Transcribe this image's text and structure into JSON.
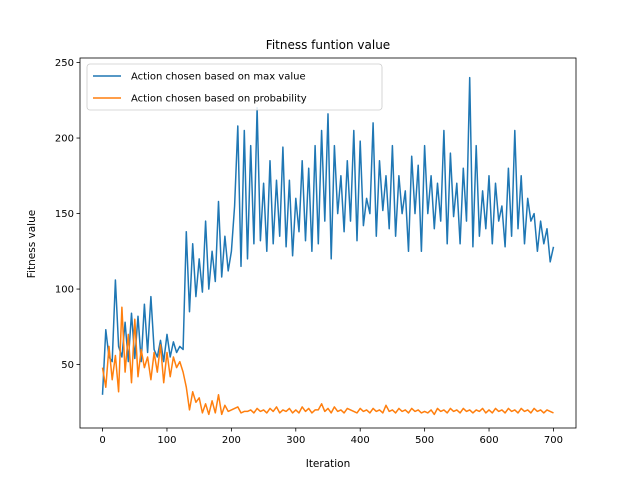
{
  "chart_data": {
    "type": "line",
    "title": "Fitness funtion value",
    "xlabel": "Iteration",
    "ylabel": "Fitness value",
    "xlim": [
      -35,
      735
    ],
    "ylim": [
      8,
      253
    ],
    "xticks": [
      0,
      100,
      200,
      300,
      400,
      500,
      600,
      700
    ],
    "yticks": [
      50,
      100,
      150,
      200,
      250
    ],
    "grid": false,
    "legend_position": "upper-left",
    "series": [
      {
        "name": "Action chosen based on max value",
        "color": "#1f77b4",
        "x": [
          0,
          5,
          10,
          15,
          20,
          25,
          30,
          35,
          40,
          45,
          50,
          55,
          60,
          65,
          70,
          75,
          80,
          85,
          90,
          95,
          100,
          105,
          110,
          115,
          120,
          125,
          130,
          135,
          140,
          145,
          150,
          155,
          160,
          165,
          170,
          175,
          180,
          185,
          190,
          195,
          200,
          205,
          210,
          215,
          220,
          225,
          230,
          235,
          240,
          245,
          250,
          255,
          260,
          265,
          270,
          275,
          280,
          285,
          290,
          295,
          300,
          305,
          310,
          315,
          320,
          325,
          330,
          335,
          340,
          345,
          350,
          355,
          360,
          365,
          370,
          375,
          380,
          385,
          390,
          395,
          400,
          405,
          410,
          415,
          420,
          425,
          430,
          435,
          440,
          445,
          450,
          455,
          460,
          465,
          470,
          475,
          480,
          485,
          490,
          495,
          500,
          505,
          510,
          515,
          520,
          525,
          530,
          535,
          540,
          545,
          550,
          555,
          560,
          565,
          570,
          575,
          580,
          585,
          590,
          595,
          600,
          605,
          610,
          615,
          620,
          625,
          630,
          635,
          640,
          645,
          650,
          655,
          660,
          665,
          670,
          675,
          680,
          685,
          690,
          695,
          700
        ],
        "values": [
          30,
          73,
          55,
          52,
          106,
          62,
          55,
          78,
          52,
          84,
          54,
          82,
          52,
          90,
          58,
          95,
          60,
          55,
          66,
          52,
          70,
          55,
          65,
          58,
          62,
          60,
          138,
          85,
          130,
          95,
          120,
          98,
          145,
          100,
          125,
          105,
          158,
          108,
          135,
          112,
          125,
          155,
          208,
          115,
          205,
          120,
          195,
          130,
          220,
          132,
          170,
          125,
          185,
          130,
          172,
          135,
          194,
          128,
          172,
          122,
          160,
          138,
          185,
          132,
          180,
          125,
          195,
          130,
          205,
          145,
          216,
          120,
          195,
          150,
          175,
          138,
          185,
          145,
          205,
          132,
          198,
          142,
          160,
          150,
          210,
          135,
          185,
          152,
          175,
          140,
          195,
          135,
          175,
          150,
          165,
          125,
          188,
          150,
          182,
          125,
          195,
          150,
          175,
          140,
          170,
          145,
          205,
          130,
          190,
          148,
          170,
          130,
          180,
          145,
          240,
          128,
          195,
          135,
          165,
          140,
          175,
          130,
          170,
          145,
          155,
          128,
          180,
          135,
          205,
          140,
          175,
          130,
          160,
          145,
          150,
          125,
          145,
          130,
          140,
          118,
          128
        ]
      },
      {
        "name": "Action chosen based on probability",
        "color": "#ff7f0e",
        "x": [
          0,
          5,
          10,
          15,
          20,
          25,
          30,
          35,
          40,
          45,
          50,
          55,
          60,
          65,
          70,
          75,
          80,
          85,
          90,
          95,
          100,
          105,
          110,
          115,
          120,
          125,
          130,
          135,
          140,
          145,
          150,
          155,
          160,
          165,
          170,
          175,
          180,
          185,
          190,
          195,
          200,
          205,
          210,
          215,
          220,
          225,
          230,
          235,
          240,
          245,
          250,
          255,
          260,
          265,
          270,
          275,
          280,
          285,
          290,
          295,
          300,
          305,
          310,
          315,
          320,
          325,
          330,
          335,
          340,
          345,
          350,
          355,
          360,
          365,
          370,
          375,
          380,
          385,
          390,
          395,
          400,
          405,
          410,
          415,
          420,
          425,
          430,
          435,
          440,
          445,
          450,
          455,
          460,
          465,
          470,
          475,
          480,
          485,
          490,
          495,
          500,
          505,
          510,
          515,
          520,
          525,
          530,
          535,
          540,
          545,
          550,
          555,
          560,
          565,
          570,
          575,
          580,
          585,
          590,
          595,
          600,
          605,
          610,
          615,
          620,
          625,
          630,
          635,
          640,
          645,
          650,
          655,
          660,
          665,
          670,
          675,
          680,
          685,
          690,
          695,
          700
        ],
        "values": [
          48,
          35,
          62,
          40,
          56,
          32,
          88,
          45,
          70,
          38,
          80,
          42,
          60,
          48,
          55,
          40,
          58,
          45,
          63,
          38,
          58,
          42,
          55,
          48,
          52,
          45,
          35,
          20,
          32,
          25,
          28,
          18,
          24,
          17,
          26,
          18,
          30,
          17,
          23,
          19,
          20,
          21,
          22,
          18,
          19,
          19,
          20,
          18,
          21,
          19,
          20,
          18,
          21,
          19,
          22,
          18,
          20,
          19,
          21,
          18,
          20,
          18,
          22,
          19,
          21,
          18,
          20,
          20,
          24,
          19,
          21,
          18,
          22,
          19,
          20,
          18,
          21,
          20,
          19,
          18,
          21,
          19,
          20,
          18,
          21,
          19,
          20,
          18,
          23,
          19,
          20,
          18,
          21,
          19,
          20,
          18,
          21,
          19,
          20,
          18,
          19,
          18,
          20,
          17,
          21,
          19,
          20,
          18,
          21,
          19,
          20,
          18,
          21,
          19,
          20,
          18,
          20,
          19,
          21,
          18,
          20,
          18,
          21,
          19,
          20,
          18,
          21,
          19,
          20,
          18,
          21,
          19,
          20,
          18,
          21,
          19,
          20,
          18,
          20,
          19,
          18
        ]
      }
    ]
  }
}
